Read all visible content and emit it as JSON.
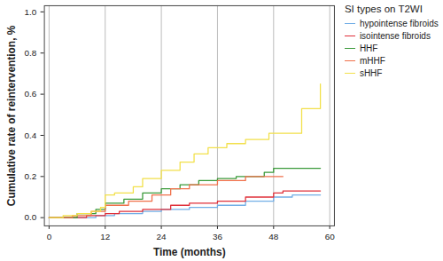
{
  "chart_data": {
    "type": "line",
    "x_label": "Time (months)",
    "y_label": "Cumulative rate of reintervention, %",
    "legend_title": "SI types on T2WI",
    "legend": "right",
    "grid": "x",
    "line_style": "step",
    "xlim": [
      -1,
      61
    ],
    "xticks": [
      0,
      12,
      24,
      36,
      48,
      60
    ],
    "ylim": [
      -0.04,
      1.03
    ],
    "yticks": [
      {
        "value": 0,
        "label": "0.0"
      },
      {
        "value": 0.2,
        "label": "0.2"
      },
      {
        "value": 0.4,
        "label": "0.4"
      },
      {
        "value": 0.6,
        "label": "0.6"
      },
      {
        "value": 0.8,
        "label": "0.8"
      },
      {
        "value": 1,
        "label": "1.0"
      }
    ],
    "series": [
      {
        "name": "hypointense fibroids",
        "color": "#72aee6",
        "x": [
          0,
          10,
          14,
          20,
          24,
          30,
          36,
          42,
          48,
          52,
          58
        ],
        "values": [
          0,
          0.01,
          0.02,
          0.03,
          0.04,
          0.05,
          0.06,
          0.08,
          0.1,
          0.11,
          0.11
        ]
      },
      {
        "name": "isointense fibroids",
        "color": "#e0303a",
        "x": [
          0,
          8,
          12,
          15,
          20,
          26,
          30,
          36,
          42,
          48,
          50,
          58
        ],
        "values": [
          0,
          0.01,
          0.02,
          0.03,
          0.04,
          0.06,
          0.07,
          0.08,
          0.1,
          0.12,
          0.13,
          0.13
        ]
      },
      {
        "name": "HHF",
        "color": "#3a9a3a",
        "x": [
          0,
          6,
          10,
          12,
          16,
          20,
          24,
          28,
          32,
          36,
          40,
          46,
          48,
          58
        ],
        "values": [
          0,
          0.02,
          0.04,
          0.07,
          0.09,
          0.12,
          0.14,
          0.16,
          0.18,
          0.19,
          0.2,
          0.22,
          0.24,
          0.24
        ]
      },
      {
        "name": "mHHF",
        "color": "#f0704a",
        "x": [
          0,
          5,
          9,
          12,
          17,
          22,
          26,
          30,
          36,
          42,
          50
        ],
        "values": [
          0,
          0.01,
          0.03,
          0.06,
          0.08,
          0.11,
          0.14,
          0.16,
          0.18,
          0.2,
          0.2
        ]
      },
      {
        "name": "sHHF",
        "color": "#f2e04a",
        "x": [
          0,
          3,
          6,
          9,
          11,
          12,
          14,
          18,
          20,
          24,
          28,
          31,
          34,
          38,
          42,
          47,
          52,
          54,
          57,
          58
        ],
        "values": [
          0,
          0.01,
          0.02,
          0.03,
          0.05,
          0.11,
          0.12,
          0.15,
          0.19,
          0.23,
          0.27,
          0.31,
          0.34,
          0.36,
          0.38,
          0.41,
          0.41,
          0.53,
          0.53,
          0.65
        ]
      }
    ]
  }
}
